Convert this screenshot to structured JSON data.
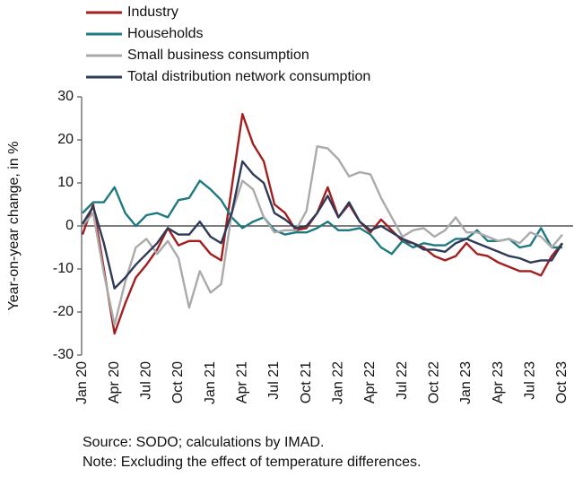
{
  "chart_data": {
    "type": "line",
    "y_label": "Year-on-year change, in %",
    "notes": [
      "Source: SODO; calculations by IMAD.",
      "Note: Excluding the effect of temperature differences."
    ],
    "categories": [
      "Jan 20",
      null,
      null,
      "Apr 20",
      null,
      null,
      "Jul 20",
      null,
      null,
      "Oct 20",
      null,
      null,
      "Jan 21",
      null,
      null,
      "Apr 21",
      null,
      null,
      "Jul 21",
      null,
      null,
      "Oct 21",
      null,
      null,
      "Jan 22",
      null,
      null,
      "Apr 22",
      null,
      null,
      "Jul 22",
      null,
      null,
      "Oct 22",
      null,
      null,
      "Jan 23",
      null,
      null,
      "Apr 23",
      null,
      null,
      "Jul 23",
      null,
      null,
      "Oct 23"
    ],
    "series": [
      {
        "name": "Industry",
        "color": "#a31f1f",
        "values": [
          -2,
          5,
          -10,
          -25,
          -18,
          -12,
          -9,
          -5.5,
          -0.5,
          -4.5,
          -3.5,
          -3.5,
          -6.5,
          -8,
          9,
          26,
          19,
          15,
          5,
          3,
          -1,
          -0.5,
          3,
          9,
          2,
          5,
          1,
          -1.5,
          1.5,
          -1,
          -3.5,
          -4,
          -5,
          -7,
          -8,
          -7,
          -4,
          -6.5,
          -7,
          -8.5,
          -9.5,
          -10.5,
          -10.5,
          -11.5,
          -7,
          -4
        ]
      },
      {
        "name": "Households",
        "color": "#1f7a80",
        "values": [
          3,
          5.5,
          5.5,
          9,
          3,
          0,
          2.5,
          3,
          2,
          6,
          6.5,
          10.5,
          8.5,
          6,
          2,
          -0.5,
          1,
          2,
          -1,
          -2,
          -1.5,
          -1.5,
          -0.5,
          1,
          -1,
          -1,
          -0.5,
          -2,
          -5,
          -6.5,
          -3.5,
          -5,
          -4,
          -4.5,
          -4.5,
          -3,
          -3,
          -1,
          -3.5,
          -3.5,
          -3,
          -5,
          -4.5,
          -0.5,
          -5,
          -5
        ]
      },
      {
        "name": "Small business consumption",
        "color": "#aaaaaa",
        "values": [
          0,
          3,
          -11,
          -23,
          -13,
          -5,
          -3,
          -6.5,
          -3.5,
          -7.5,
          -19,
          -10.5,
          -15.5,
          -13.5,
          3,
          10.5,
          8.5,
          2,
          -1.5,
          -1,
          -1,
          3.5,
          18.5,
          18,
          15.5,
          11.5,
          12.5,
          12,
          6.5,
          2,
          -2.5,
          -1,
          -0.5,
          -2.5,
          -1,
          2,
          -1.5,
          -1.5,
          -2.5,
          -3.5,
          -3,
          -4,
          -1.5,
          -2.5,
          -5,
          -2
        ]
      },
      {
        "name": "Total distribution network consumption",
        "color": "#2e3a57",
        "values": [
          0.5,
          4.5,
          -4,
          -14.5,
          -12,
          -9,
          -6.5,
          -4,
          -0.5,
          -2,
          -2,
          1,
          -2.5,
          -4,
          3,
          15,
          12,
          10,
          3,
          1.5,
          -0.5,
          0,
          3,
          7,
          2,
          5.5,
          1,
          -1,
          0,
          -1.5,
          -3,
          -4,
          -5.5,
          -5.5,
          -6,
          -4,
          -3,
          -4,
          -5,
          -6,
          -7,
          -7.5,
          -8.5,
          -8,
          -8,
          -4
        ]
      }
    ],
    "ylim": [
      -30,
      30
    ],
    "yticks": [
      -30,
      -20,
      -10,
      0,
      10,
      20,
      30
    ]
  }
}
